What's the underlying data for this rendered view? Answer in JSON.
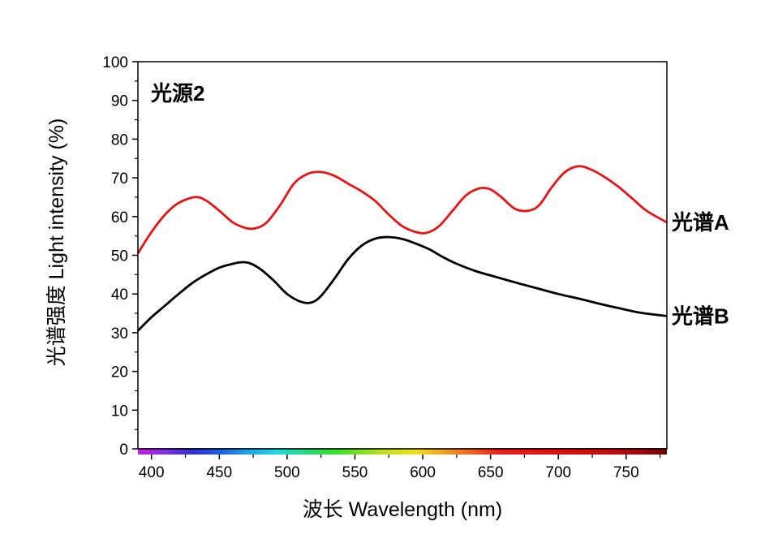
{
  "chart_data": {
    "type": "line",
    "xlabel": "波长 Wavelength (nm)",
    "ylabel": "光谱强度 Light intensity (%)",
    "xlim": [
      390,
      780
    ],
    "ylim": [
      0,
      100
    ],
    "xticks": [
      400,
      450,
      500,
      550,
      600,
      650,
      700,
      750
    ],
    "yticks": [
      0,
      10,
      20,
      30,
      40,
      50,
      60,
      70,
      80,
      90,
      100
    ],
    "grid": false,
    "annotation": "光源2",
    "spectrum_colors": [
      "#c020e0",
      "#8030e0",
      "#3030d0",
      "#2060e0",
      "#20a8e8",
      "#20d8e0",
      "#20d880",
      "#30e030",
      "#80e020",
      "#c8e020",
      "#f0e020",
      "#f0a020",
      "#f06020",
      "#e82020",
      "#e01818",
      "#d81010",
      "#d00c0c",
      "#c00a0a",
      "#a00808",
      "#700404"
    ],
    "series": [
      {
        "name": "光谱A",
        "color": "#ee1111",
        "x": [
          390,
          400,
          410,
          420,
          432,
          440,
          450,
          460,
          470,
          477,
          485,
          495,
          505,
          515,
          525,
          535,
          545,
          555,
          565,
          575,
          585,
          595,
          603,
          612,
          622,
          632,
          642,
          650,
          658,
          668,
          678,
          686,
          695,
          705,
          715,
          725,
          735,
          745,
          755,
          765,
          780
        ],
        "values": [
          50.5,
          56,
          60.5,
          63.5,
          65,
          64.2,
          61.5,
          58.5,
          57,
          57,
          58.5,
          63,
          68.5,
          71,
          71.5,
          70.5,
          68.5,
          66.5,
          64,
          60.5,
          57.5,
          56,
          55.8,
          57.5,
          61.5,
          65.5,
          67.3,
          67,
          65,
          62,
          61.5,
          63,
          67.5,
          71.5,
          73,
          72,
          70,
          67.5,
          64.5,
          61.5,
          58.5
        ]
      },
      {
        "name": "光谱B",
        "color": "#000000",
        "x": [
          390,
          400,
          410,
          420,
          430,
          440,
          450,
          460,
          466,
          472,
          480,
          490,
          500,
          510,
          518,
          525,
          535,
          545,
          555,
          565,
          575,
          585,
          595,
          605,
          615,
          625,
          640,
          655,
          670,
          685,
          700,
          715,
          730,
          745,
          760,
          780
        ],
        "values": [
          30.5,
          34,
          37,
          40,
          42.8,
          45,
          46.8,
          47.8,
          48.2,
          48,
          46.5,
          43.5,
          40,
          38,
          37.8,
          39.5,
          44,
          49,
          52.5,
          54.3,
          54.7,
          54.2,
          53,
          51.5,
          49.5,
          47.8,
          45.8,
          44.3,
          42.8,
          41.4,
          40,
          38.8,
          37.5,
          36.3,
          35.2,
          34.3
        ]
      }
    ]
  }
}
